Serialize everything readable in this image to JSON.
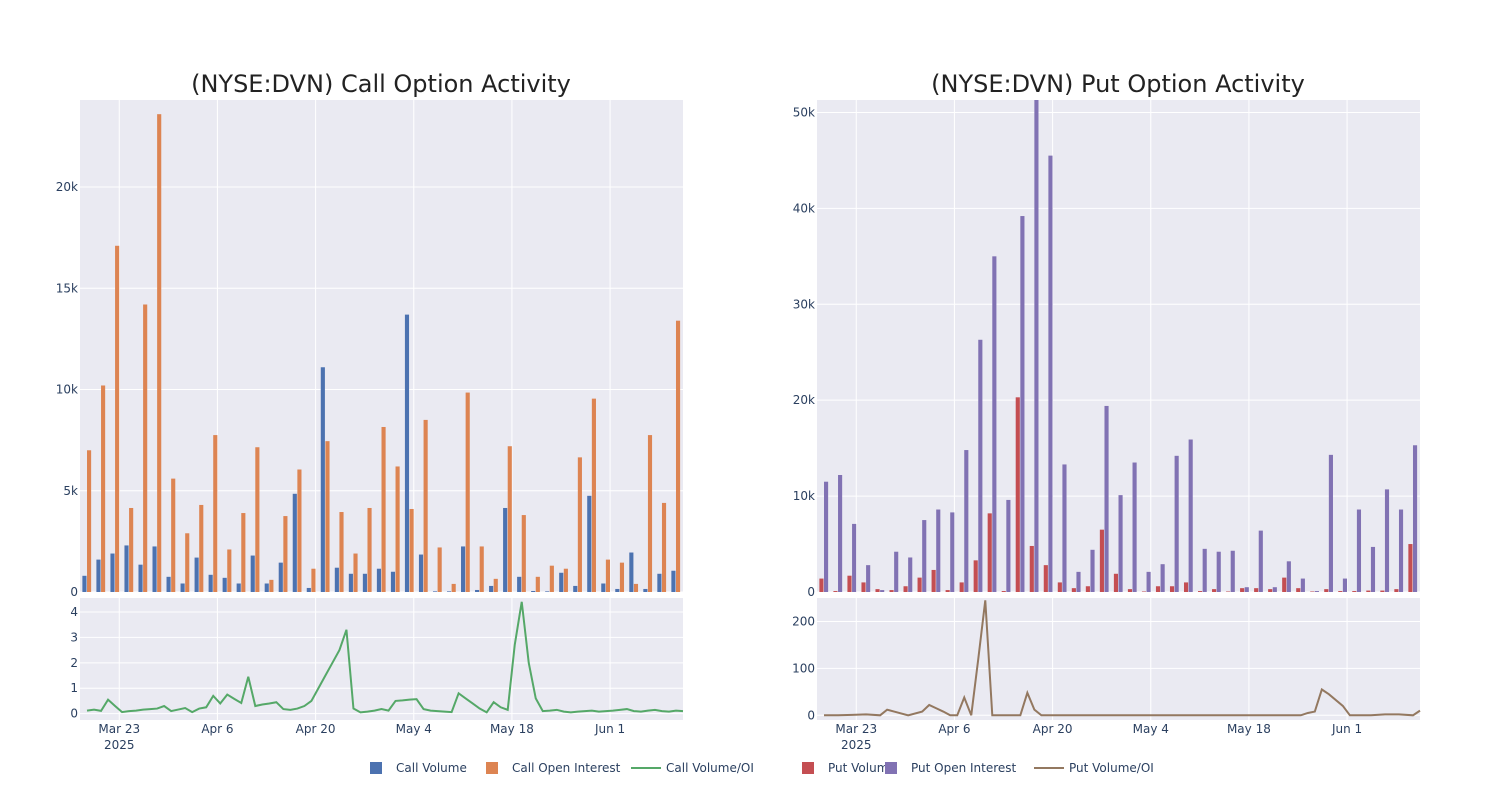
{
  "colors": {
    "call_volume": "#4c72b0",
    "call_oi": "#dd8452",
    "call_ratio": "#55a868",
    "put_volume": "#c44e52",
    "put_oi": "#8172b3",
    "put_ratio": "#937860",
    "plot_bg": "#eaeaf2",
    "grid": "#ffffff"
  },
  "legend": [
    {
      "label": "Call Volume",
      "kind": "square",
      "color_key": "call_volume"
    },
    {
      "label": "Call Open Interest",
      "kind": "square",
      "color_key": "call_oi"
    },
    {
      "label": "Call Volume/OI",
      "kind": "line",
      "color_key": "call_ratio"
    },
    {
      "label": "Put Volume",
      "kind": "square",
      "color_key": "put_volume"
    },
    {
      "label": "Put Open Interest",
      "kind": "square",
      "color_key": "put_oi"
    },
    {
      "label": "Put Volume/OI",
      "kind": "line",
      "color_key": "put_ratio"
    }
  ],
  "chart_data": [
    {
      "type": "bar",
      "title": "(NYSE:DVN) Call Option Activity",
      "x_tick_labels": [
        "Mar 23",
        "Apr 6",
        "Apr 20",
        "May 4",
        "May 18",
        "Jun 1"
      ],
      "x_tick_sublabel": "2025",
      "y_ticks": [
        "0",
        "5k",
        "10k",
        "15k",
        "20k"
      ],
      "ylim": [
        0,
        24300
      ],
      "ratio_y_ticks": [
        "0",
        "1",
        "2",
        "3",
        "4"
      ],
      "ratio_ylim": [
        -0.25,
        4.55
      ],
      "series": [
        {
          "name": "Call Volume",
          "color_key": "call_volume",
          "values": [
            800,
            1600,
            1900,
            2300,
            1350,
            2250,
            750,
            420,
            1700,
            850,
            700,
            420,
            1800,
            420,
            1450,
            4850,
            200,
            11100,
            1200,
            900,
            900,
            1150,
            1000,
            13700,
            1850,
            30,
            30,
            2250,
            100,
            300,
            4150,
            750,
            50,
            30,
            950,
            300,
            4750,
            420,
            150,
            1950,
            150,
            900,
            1050
          ]
        },
        {
          "name": "Call Open Interest",
          "color_key": "call_oi",
          "values": [
            7000,
            10200,
            17100,
            4150,
            14200,
            23600,
            5600,
            2900,
            4300,
            7750,
            2100,
            3900,
            7150,
            600,
            3750,
            6050,
            1150,
            7450,
            3950,
            1900,
            4150,
            8150,
            6200,
            4100,
            8500,
            2200,
            400,
            9850,
            2250,
            650,
            7200,
            3800,
            750,
            1300,
            1150,
            6650,
            9550,
            1600,
            1450,
            400,
            7750,
            4400,
            13400
          ]
        },
        {
          "name": "Call Volume/OI",
          "color_key": "call_ratio",
          "x": [
            0,
            0.5,
            1,
            1.5,
            2,
            2.5,
            3,
            3.5,
            4,
            4.5,
            5,
            5.5,
            6,
            6.5,
            7,
            7.5,
            8,
            8.5,
            9,
            9.5,
            10,
            10.5,
            11,
            11.5,
            12,
            12.5,
            13,
            13.5,
            14,
            14.5,
            15,
            15.5,
            16,
            16.5,
            17,
            17.5,
            18,
            18.5,
            19,
            19.5,
            20,
            20.5,
            21,
            21.5,
            22,
            22.5,
            23,
            23.5,
            24,
            24.5,
            25,
            25.5,
            26,
            26.5,
            27,
            27.5,
            28,
            28.5,
            29,
            29.5,
            30,
            30.5,
            31,
            31.5,
            32,
            32.5,
            33,
            33.5,
            34,
            34.5,
            35,
            35.5,
            36,
            36.5,
            37,
            37.5,
            38,
            38.5,
            39,
            39.5,
            40,
            40.5,
            41,
            41.5,
            42,
            42.5
          ],
          "values": [
            0.12,
            0.16,
            0.11,
            0.55,
            0.3,
            0.06,
            0.1,
            0.12,
            0.16,
            0.18,
            0.2,
            0.3,
            0.1,
            0.16,
            0.22,
            0.06,
            0.2,
            0.25,
            0.7,
            0.4,
            0.75,
            0.58,
            0.42,
            1.45,
            0.3,
            0.36,
            0.4,
            0.45,
            0.18,
            0.15,
            0.2,
            0.3,
            0.5,
            1.0,
            1.5,
            2.0,
            2.5,
            3.3,
            0.2,
            0.05,
            0.08,
            0.12,
            0.18,
            0.12,
            0.5,
            0.52,
            0.55,
            0.57,
            0.18,
            0.12,
            0.1,
            0.08,
            0.06,
            0.8,
            0.6,
            0.4,
            0.2,
            0.05,
            0.45,
            0.25,
            0.15,
            2.7,
            4.4,
            2.0,
            0.6,
            0.1,
            0.12,
            0.15,
            0.08,
            0.05,
            0.08,
            0.1,
            0.12,
            0.08,
            0.1,
            0.12,
            0.15,
            0.18,
            0.1,
            0.08,
            0.12,
            0.15,
            0.1,
            0.08,
            0.12,
            0.1
          ]
        }
      ]
    },
    {
      "type": "bar",
      "title": "(NYSE:DVN) Put Option Activity",
      "x_tick_labels": [
        "Mar 23",
        "Apr 6",
        "Apr 20",
        "May 4",
        "May 18",
        "Jun 1"
      ],
      "x_tick_sublabel": "2025",
      "y_ticks": [
        "0",
        "10k",
        "20k",
        "30k",
        "40k",
        "50k"
      ],
      "ylim": [
        0,
        51300
      ],
      "ratio_y_ticks": [
        "0",
        "100",
        "200"
      ],
      "ratio_ylim": [
        -10,
        250
      ],
      "series": [
        {
          "name": "Put Volume",
          "color_key": "put_volume",
          "values": [
            1400,
            100,
            1700,
            1000,
            300,
            200,
            600,
            1500,
            2300,
            200,
            1000,
            3300,
            8200,
            100,
            20300,
            4800,
            2800,
            1000,
            400,
            600,
            6500,
            1900,
            300,
            50,
            600,
            600,
            1000,
            100,
            300,
            50,
            400,
            400,
            300,
            1500,
            400,
            50,
            300,
            100,
            100,
            150,
            150,
            300,
            5000
          ]
        },
        {
          "name": "Put Open Interest",
          "color_key": "put_oi",
          "values": [
            11500,
            12200,
            7100,
            2800,
            200,
            4200,
            3600,
            7500,
            8600,
            8300,
            14800,
            26300,
            35000,
            9600,
            39200,
            51300,
            45500,
            13300,
            2100,
            4400,
            19400,
            10100,
            13500,
            2100,
            2900,
            14200,
            15900,
            4500,
            4200,
            4300,
            500,
            6400,
            500,
            3200,
            1400,
            100,
            14300,
            1400,
            8600,
            4700,
            10700,
            8600,
            15300
          ]
        },
        {
          "name": "Put Volume/OI",
          "color_key": "put_ratio",
          "x": [
            0,
            1,
            2,
            3,
            4,
            4.5,
            5,
            6,
            7,
            7.5,
            8,
            8.5,
            9,
            9.5,
            10,
            10.5,
            11,
            11.5,
            12,
            12.5,
            13,
            13.5,
            14,
            14.5,
            15,
            15.5,
            16,
            16.5,
            17,
            18,
            19,
            20,
            21,
            22,
            23,
            24,
            25,
            26,
            27,
            28,
            29,
            30,
            31,
            32,
            33,
            34,
            34.5,
            35,
            35.5,
            36,
            37,
            37.5,
            38,
            39,
            40,
            41,
            42,
            42.5
          ],
          "values": [
            0,
            0,
            1,
            2,
            0,
            12,
            8,
            0,
            8,
            22,
            15,
            8,
            0,
            0,
            38,
            0,
            120,
            245,
            0,
            0,
            0,
            0,
            0,
            48,
            12,
            0,
            0,
            0,
            0,
            0,
            0,
            0,
            0,
            0,
            0,
            0,
            0,
            0,
            0,
            0,
            0,
            0,
            0,
            0,
            0,
            0,
            5,
            8,
            55,
            45,
            20,
            0,
            0,
            0,
            2,
            2,
            0,
            10
          ]
        }
      ]
    }
  ]
}
